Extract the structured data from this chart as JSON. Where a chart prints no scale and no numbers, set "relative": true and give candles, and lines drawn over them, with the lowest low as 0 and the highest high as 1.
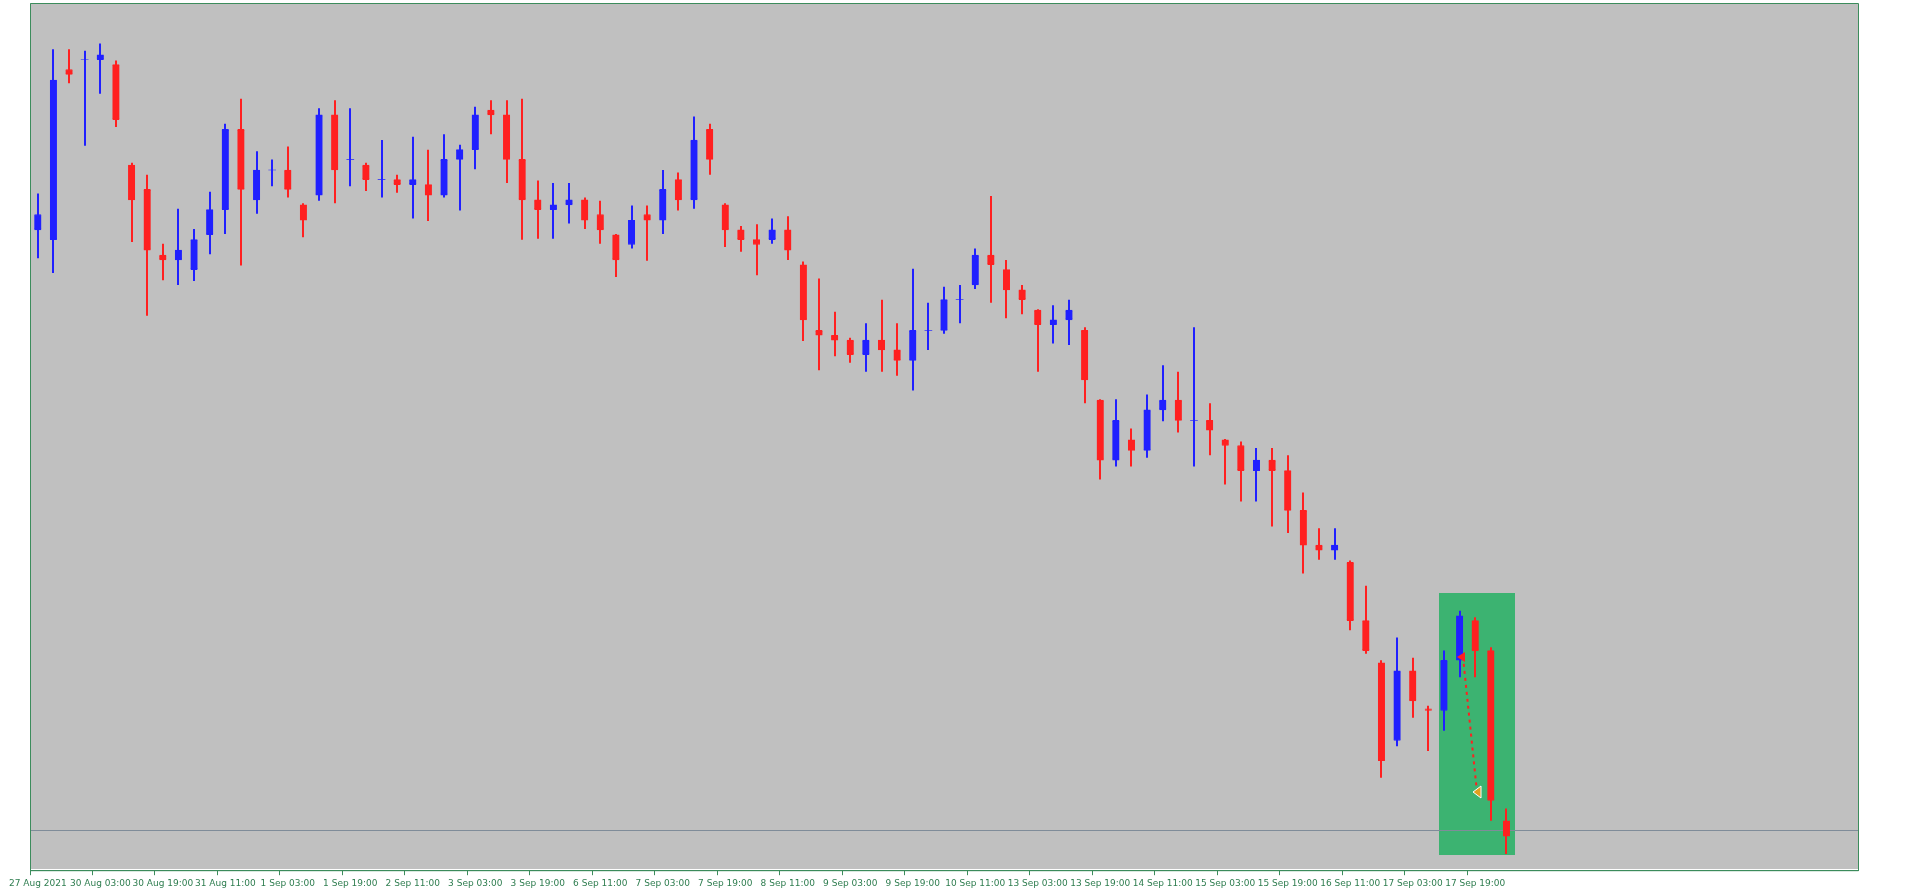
{
  "chart_data": {
    "type": "candlestick",
    "relative": true,
    "categories": [
      "27 Aug 2021",
      null,
      null,
      null,
      "30 Aug 03:00",
      null,
      null,
      null,
      "30 Aug 19:00",
      null,
      null,
      null,
      "31 Aug 11:00",
      null,
      null,
      null,
      "1 Sep 03:00",
      null,
      null,
      null,
      "1 Sep 19:00",
      null,
      null,
      null,
      "2 Sep 11:00",
      null,
      null,
      null,
      "3 Sep 03:00",
      null,
      null,
      null,
      "3 Sep 19:00",
      null,
      null,
      null,
      "6 Sep 11:00",
      null,
      null,
      null,
      "7 Sep 03:00",
      null,
      null,
      null,
      "7 Sep 19:00",
      null,
      null,
      null,
      "8 Sep 11:00",
      null,
      null,
      null,
      "9 Sep 03:00",
      null,
      null,
      null,
      "9 Sep 19:00",
      null,
      null,
      null,
      "10 Sep 11:00",
      null,
      null,
      null,
      "13 Sep 03:00",
      null,
      null,
      null,
      "13 Sep 19:00",
      null,
      null,
      null,
      "14 Sep 11:00",
      null,
      null,
      null,
      "15 Sep 03:00",
      null,
      null,
      null,
      "15 Sep 19:00",
      null,
      null,
      null,
      "16 Sep 11:00",
      null,
      null,
      null,
      "17 Sep 03:00",
      null,
      null,
      null,
      "17 Sep 19:00",
      null,
      null,
      null,
      null,
      null,
      null,
      null,
      null,
      null,
      null,
      null,
      null,
      null,
      null,
      null,
      null,
      null,
      null,
      null,
      null,
      null,
      null,
      null,
      null
    ],
    "ohlc": [
      [
        0.77,
        0.815,
        0.735,
        0.789
      ],
      [
        0.758,
        0.993,
        0.717,
        0.955
      ],
      [
        0.968,
        0.993,
        0.951,
        0.962
      ],
      [
        0.98,
        0.991,
        0.874,
        0.98
      ],
      [
        0.98,
        1.0,
        0.938,
        0.986
      ],
      [
        0.974,
        0.979,
        0.897,
        0.906
      ],
      [
        0.85,
        0.853,
        0.755,
        0.807
      ],
      [
        0.82,
        0.838,
        0.664,
        0.745
      ],
      [
        0.739,
        0.753,
        0.708,
        0.733
      ],
      [
        0.733,
        0.796,
        0.702,
        0.745
      ],
      [
        0.721,
        0.771,
        0.707,
        0.758
      ],
      [
        0.764,
        0.817,
        0.74,
        0.795
      ],
      [
        0.795,
        0.901,
        0.765,
        0.894
      ],
      [
        0.894,
        0.932,
        0.726,
        0.82
      ],
      [
        0.807,
        0.867,
        0.79,
        0.844
      ],
      [
        0.844,
        0.857,
        0.824,
        0.844
      ],
      [
        0.844,
        0.873,
        0.81,
        0.82
      ],
      [
        0.801,
        0.803,
        0.761,
        0.782
      ],
      [
        0.813,
        0.92,
        0.806,
        0.912
      ],
      [
        0.912,
        0.93,
        0.803,
        0.844
      ],
      [
        0.857,
        0.92,
        0.824,
        0.857
      ],
      [
        0.85,
        0.853,
        0.818,
        0.832
      ],
      [
        0.832,
        0.881,
        0.81,
        0.832
      ],
      [
        0.832,
        0.838,
        0.816,
        0.826
      ],
      [
        0.826,
        0.885,
        0.784,
        0.832
      ],
      [
        0.826,
        0.869,
        0.781,
        0.813
      ],
      [
        0.813,
        0.888,
        0.81,
        0.857
      ],
      [
        0.857,
        0.875,
        0.794,
        0.869
      ],
      [
        0.869,
        0.922,
        0.845,
        0.912
      ],
      [
        0.918,
        0.93,
        0.888,
        0.912
      ],
      [
        0.912,
        0.93,
        0.828,
        0.857
      ],
      [
        0.857,
        0.932,
        0.758,
        0.807
      ],
      [
        0.807,
        0.831,
        0.759,
        0.795
      ],
      [
        0.795,
        0.828,
        0.759,
        0.801
      ],
      [
        0.801,
        0.828,
        0.778,
        0.807
      ],
      [
        0.807,
        0.81,
        0.771,
        0.782
      ],
      [
        0.789,
        0.806,
        0.753,
        0.77
      ],
      [
        0.764,
        0.765,
        0.712,
        0.733
      ],
      [
        0.752,
        0.8,
        0.747,
        0.782
      ],
      [
        0.789,
        0.8,
        0.732,
        0.782
      ],
      [
        0.782,
        0.844,
        0.765,
        0.82
      ],
      [
        0.832,
        0.841,
        0.794,
        0.807
      ],
      [
        0.807,
        0.91,
        0.796,
        0.881
      ],
      [
        0.894,
        0.901,
        0.838,
        0.857
      ],
      [
        0.801,
        0.803,
        0.749,
        0.77
      ],
      [
        0.77,
        0.775,
        0.743,
        0.758
      ],
      [
        0.758,
        0.777,
        0.714,
        0.752
      ],
      [
        0.758,
        0.784,
        0.753,
        0.77
      ],
      [
        0.77,
        0.787,
        0.733,
        0.745
      ],
      [
        0.727,
        0.731,
        0.633,
        0.659
      ],
      [
        0.646,
        0.71,
        0.597,
        0.64
      ],
      [
        0.64,
        0.669,
        0.614,
        0.634
      ],
      [
        0.634,
        0.637,
        0.606,
        0.616
      ],
      [
        0.616,
        0.655,
        0.595,
        0.634
      ],
      [
        0.634,
        0.684,
        0.595,
        0.622
      ],
      [
        0.622,
        0.655,
        0.59,
        0.609
      ],
      [
        0.609,
        0.722,
        0.572,
        0.646
      ],
      [
        0.646,
        0.68,
        0.622,
        0.646
      ],
      [
        0.646,
        0.7,
        0.642,
        0.684
      ],
      [
        0.684,
        0.702,
        0.655,
        0.684
      ],
      [
        0.702,
        0.747,
        0.697,
        0.739
      ],
      [
        0.739,
        0.812,
        0.68,
        0.727
      ],
      [
        0.721,
        0.733,
        0.661,
        0.696
      ],
      [
        0.696,
        0.702,
        0.666,
        0.684
      ],
      [
        0.671,
        0.672,
        0.595,
        0.653
      ],
      [
        0.653,
        0.677,
        0.63,
        0.659
      ],
      [
        0.659,
        0.684,
        0.628,
        0.671
      ],
      [
        0.646,
        0.65,
        0.556,
        0.585
      ],
      [
        0.56,
        0.561,
        0.462,
        0.486
      ],
      [
        0.486,
        0.561,
        0.478,
        0.535
      ],
      [
        0.511,
        0.525,
        0.478,
        0.498
      ],
      [
        0.498,
        0.567,
        0.489,
        0.548
      ],
      [
        0.548,
        0.603,
        0.534,
        0.56
      ],
      [
        0.56,
        0.595,
        0.52,
        0.535
      ],
      [
        0.535,
        0.65,
        0.478,
        0.535
      ],
      [
        0.535,
        0.556,
        0.492,
        0.523
      ],
      [
        0.511,
        0.512,
        0.456,
        0.504
      ],
      [
        0.504,
        0.509,
        0.435,
        0.473
      ],
      [
        0.473,
        0.501,
        0.435,
        0.486
      ],
      [
        0.486,
        0.501,
        0.404,
        0.473
      ],
      [
        0.473,
        0.492,
        0.396,
        0.424
      ],
      [
        0.424,
        0.446,
        0.346,
        0.381
      ],
      [
        0.381,
        0.402,
        0.363,
        0.375
      ],
      [
        0.375,
        0.402,
        0.363,
        0.381
      ],
      [
        0.36,
        0.362,
        0.276,
        0.288
      ],
      [
        0.288,
        0.331,
        0.247,
        0.251
      ],
      [
        0.236,
        0.239,
        0.094,
        0.115
      ],
      [
        0.14,
        0.267,
        0.133,
        0.226
      ],
      [
        0.226,
        0.242,
        0.168,
        0.189
      ],
      [
        0.179,
        0.183,
        0.127,
        0.177
      ],
      [
        0.177,
        0.251,
        0.152,
        0.239
      ],
      [
        0.239,
        0.3,
        0.218,
        0.294
      ],
      [
        0.288,
        0.292,
        0.218,
        0.251
      ],
      [
        0.251,
        0.255,
        0.041,
        0.066
      ],
      [
        0.041,
        0.056,
        0,
        0.022
      ],
      null,
      null,
      null,
      null,
      null,
      null,
      null,
      null,
      null,
      null,
      null,
      null,
      null,
      null,
      null,
      null,
      null,
      null,
      null,
      null,
      null,
      null
    ],
    "colors": [
      "#2020ff",
      "#2020ff",
      "#ff2020",
      "#2020ff",
      "#2020ff",
      "#ff2020",
      "#ff2020",
      "#ff2020",
      "#ff2020",
      "#2020ff",
      "#2020ff",
      "#2020ff",
      "#2020ff",
      "#ff2020",
      "#2020ff",
      "#2020ff",
      "#ff2020",
      "#ff2020",
      "#2020ff",
      "#ff2020",
      "#2020ff",
      "#ff2020",
      "#2020ff",
      "#ff2020",
      "#2020ff",
      "#ff2020",
      "#2020ff",
      "#2020ff",
      "#2020ff",
      "#ff2020",
      "#ff2020",
      "#ff2020",
      "#ff2020",
      "#2020ff",
      "#2020ff",
      "#ff2020",
      "#ff2020",
      "#ff2020",
      "#2020ff",
      "#ff2020",
      "#2020ff",
      "#ff2020",
      "#2020ff",
      "#ff2020",
      "#ff2020",
      "#ff2020",
      "#ff2020",
      "#2020ff",
      "#ff2020",
      "#ff2020",
      "#ff2020",
      "#ff2020",
      "#ff2020",
      "#2020ff",
      "#ff2020",
      "#ff2020",
      "#2020ff",
      "#2020ff",
      "#2020ff",
      "#2020ff",
      "#2020ff",
      "#ff2020",
      "#ff2020",
      "#ff2020",
      "#ff2020",
      "#2020ff",
      "#2020ff",
      "#ff2020",
      "#ff2020",
      "#2020ff",
      "#ff2020",
      "#2020ff",
      "#2020ff",
      "#ff2020",
      "#2020ff",
      "#ff2020",
      "#ff2020",
      "#ff2020",
      "#2020ff",
      "#ff2020",
      "#ff2020",
      "#ff2020",
      "#ff2020",
      "#2020ff",
      "#ff2020",
      "#ff2020",
      "#ff2020",
      "#2020ff",
      "#ff2020",
      "#ff2020",
      "#2020ff",
      "#2020ff",
      "#ff2020",
      "#ff2020",
      "#ff2020",
      null,
      null,
      null,
      null,
      null,
      null,
      null,
      null,
      null,
      null,
      null,
      null,
      null,
      null,
      null,
      null,
      null,
      null,
      null,
      null,
      null,
      null
    ],
    "ref_lines": [
      {
        "axis": "y",
        "value": 0.03,
        "color": "#7f8c99"
      }
    ]
  }
}
